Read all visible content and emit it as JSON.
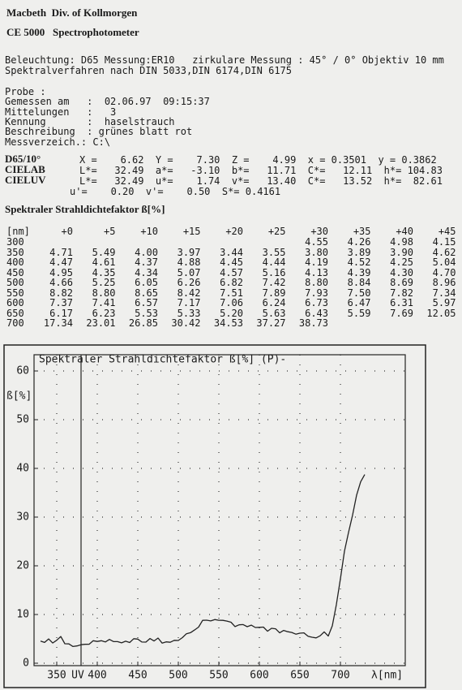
{
  "header": {
    "company": "Macbeth  Div. of Kollmorgen",
    "device": "CE 5000   Spectrophotometer"
  },
  "conditions": [
    "Beleuchtung: D65 Messung:ER10   zirkulare Messung : 45° / 0° Objektiv 10 mm",
    "Spektralverfahren nach DIN 5033,DIN 6174,DIN 6175"
  ],
  "probe": [
    "Probe :",
    "Gemessen am   :  02.06.97  09:15:37",
    "Mittelungen   :   3",
    "Kennung       :  haselstrauch",
    "Beschreibung  : grünes blatt rot",
    "Messverzeich.: C:\\"
  ],
  "colorimetry": [
    {
      "label": "D65/10°",
      "text": "X =    6.62  Y =    7.30  Z =    4.99  x = 0.3501  y = 0.3862"
    },
    {
      "label": "CIELAB",
      "text": "L*=   32.49  a*=   -3.10  b*=   11.71  C*=   12.11  h*= 104.83"
    },
    {
      "label": "CIELUV",
      "text": "L*=   32.49  u*=    1.74  v*=   13.40  C*=   13.52  h*=  82.61"
    },
    {
      "text": "u'=    0.20  v'=    0.50  S*= 0.4161"
    }
  ],
  "table": {
    "title": "Spektraler Strahldichtefaktor ß[%]",
    "header": [
      "[nm]",
      "+0",
      "+5",
      "+10",
      "+15",
      "+20",
      "+25",
      "+30",
      "+35",
      "+40",
      "+45"
    ],
    "rows": [
      {
        "nm": "300",
        "values": [
          "4.55",
          "4.26",
          "4.98",
          "4.15"
        ]
      },
      {
        "nm": "350",
        "values": [
          "4.71",
          "5.49",
          "4.00",
          "3.97",
          "3.44",
          "3.55",
          "3.80",
          "3.89",
          "3.90",
          "4.62"
        ]
      },
      {
        "nm": "400",
        "values": [
          "4.47",
          "4.61",
          "4.37",
          "4.88",
          "4.45",
          "4.44",
          "4.19",
          "4.52",
          "4.25",
          "5.04"
        ]
      },
      {
        "nm": "450",
        "values": [
          "4.95",
          "4.35",
          "4.34",
          "5.07",
          "4.57",
          "5.16",
          "4.13",
          "4.39",
          "4.30",
          "4.70"
        ]
      },
      {
        "nm": "500",
        "values": [
          "4.66",
          "5.25",
          "6.05",
          "6.26",
          "6.82",
          "7.42",
          "8.80",
          "8.84",
          "8.69",
          "8.96"
        ]
      },
      {
        "nm": "550",
        "values": [
          "8.82",
          "8.80",
          "8.65",
          "8.42",
          "7.51",
          "7.89",
          "7.93",
          "7.50",
          "7.82",
          "7.34"
        ]
      },
      {
        "nm": "600",
        "values": [
          "7.37",
          "7.41",
          "6.57",
          "7.17",
          "7.06",
          "6.24",
          "6.73",
          "6.47",
          "6.31",
          "5.97"
        ]
      },
      {
        "nm": "650",
        "values": [
          "6.17",
          "6.23",
          "5.53",
          "5.33",
          "5.20",
          "5.63",
          "6.43",
          "5.59",
          "7.69",
          "12.05"
        ]
      },
      {
        "nm": "700",
        "values": [
          "17.34",
          "23.01",
          "26.85",
          "30.42",
          "34.53",
          "37.27",
          "38.73"
        ]
      }
    ]
  },
  "chart_data": {
    "type": "line",
    "title": "Spektraler Strahldichtefaktor ß[%]   (P)-",
    "y_label": "ß[%]",
    "x_label": "λ[nm]",
    "color": "#222222",
    "x": [
      330,
      335,
      340,
      345,
      350,
      355,
      360,
      365,
      370,
      375,
      380,
      385,
      390,
      395,
      400,
      405,
      410,
      415,
      420,
      425,
      430,
      435,
      440,
      445,
      450,
      455,
      460,
      465,
      470,
      475,
      480,
      485,
      490,
      495,
      500,
      505,
      510,
      515,
      520,
      525,
      530,
      535,
      540,
      545,
      550,
      555,
      560,
      565,
      570,
      575,
      580,
      585,
      590,
      595,
      600,
      605,
      610,
      615,
      620,
      625,
      630,
      635,
      640,
      645,
      650,
      655,
      660,
      665,
      670,
      675,
      680,
      685,
      690,
      695,
      700,
      705,
      710,
      715,
      720,
      725,
      730
    ],
    "values": [
      4.55,
      4.26,
      4.98,
      4.15,
      4.71,
      5.49,
      4.0,
      3.97,
      3.44,
      3.55,
      3.8,
      3.89,
      3.9,
      4.62,
      4.47,
      4.61,
      4.37,
      4.88,
      4.45,
      4.44,
      4.19,
      4.52,
      4.25,
      5.04,
      4.95,
      4.35,
      4.34,
      5.07,
      4.57,
      5.16,
      4.13,
      4.39,
      4.3,
      4.7,
      4.66,
      5.25,
      6.05,
      6.26,
      6.82,
      7.42,
      8.8,
      8.84,
      8.69,
      8.96,
      8.82,
      8.8,
      8.65,
      8.42,
      7.51,
      7.89,
      7.93,
      7.5,
      7.82,
      7.34,
      7.37,
      7.41,
      6.57,
      7.17,
      7.06,
      6.24,
      6.73,
      6.47,
      6.31,
      5.97,
      6.17,
      6.23,
      5.53,
      5.33,
      5.2,
      5.63,
      6.43,
      5.59,
      7.69,
      12.05,
      17.34,
      23.01,
      26.85,
      30.42,
      34.53,
      37.27,
      38.73
    ],
    "xlim": [
      322,
      780
    ],
    "ylim": [
      0,
      60
    ],
    "xticks": [
      350,
      {
        "value": 380,
        "label": "UV"
      },
      400,
      450,
      500,
      550,
      600,
      650,
      700
    ],
    "yticks": [
      0,
      10,
      20,
      30,
      40,
      50,
      60
    ],
    "grid": true
  }
}
